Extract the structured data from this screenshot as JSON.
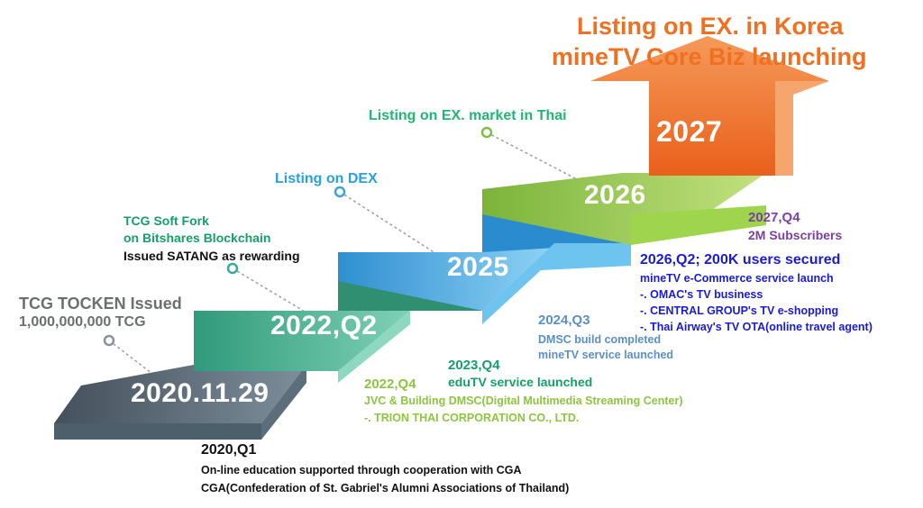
{
  "headline": {
    "line1": "Listing on EX. in Korea",
    "line2": "mineTV Core Biz launching"
  },
  "steps": [
    {
      "label": "2020.11.29",
      "color": "#4e5f6c"
    },
    {
      "label": "2022,Q2",
      "color": "#3aaa85"
    },
    {
      "label": "2025",
      "color": "#3aa4de"
    },
    {
      "label": "2026",
      "color": "#8cc63f"
    },
    {
      "label": "2027",
      "color": "#f07022"
    }
  ],
  "milestones": {
    "tcg": {
      "line1": "TCG TOCKEN Issued",
      "line2": "1,000,000,000 TCG"
    },
    "softfork": {
      "line1": "TCG Soft Fork",
      "line2": "on Bitshares Blockchain",
      "line3": "Issued SATANG as rewarding"
    },
    "dex": {
      "line1": "Listing on DEX"
    },
    "thai": {
      "line1": "Listing on EX. market in Thai"
    },
    "q1_2020": {
      "title": "2020,Q1",
      "line1": "On-line education supported through cooperation with CGA",
      "line2": "CGA(Confederation of St. Gabriel's Alumni Associations of Thailand)"
    },
    "q4_2022": {
      "title": "2022,Q4",
      "line1": "JVC & Building DMSC(Digital Multimedia Streaming Center)",
      "line2": "-. TRION THAI CORPORATION CO., LTD."
    },
    "q4_2023": {
      "title": "2023,Q4",
      "line1": "eduTV service launched"
    },
    "q3_2024": {
      "title": "2024,Q3",
      "line1": "DMSC build completed",
      "line2": "mineTV service launched"
    },
    "q2_2026": {
      "title": "2026,Q2; 200K users secured",
      "line1": "mineTV e-Commerce service launch",
      "line2": "-. OMAC's TV business",
      "line3": "-. CENTRAL GROUP's TV e-shopping",
      "line4": "-. Thai Airway's TV OTA(online travel agent)"
    },
    "q4_2027": {
      "title": "2027,Q4",
      "line1": "2M Subscribers"
    }
  }
}
